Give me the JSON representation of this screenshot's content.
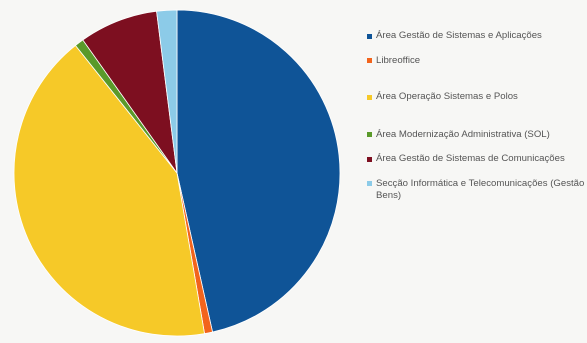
{
  "chart_data": {
    "type": "pie",
    "title": "",
    "legend_position": "right",
    "slices": [
      {
        "label": "Área Gestão de Sistemas e Aplicações",
        "value": 46.5,
        "color": "#0f5497"
      },
      {
        "label": "Libreoffice",
        "value": 0.8,
        "color": "#f2641c"
      },
      {
        "label": "Área Operação Sistemas e Polos",
        "value": 42.0,
        "color": "#f6c928"
      },
      {
        "label": "Área Modernização Administrativa (SOL)",
        "value": 0.9,
        "color": "#5a9a2a"
      },
      {
        "label": "Área Gestão de Sistemas de Comunicações",
        "value": 7.8,
        "color": "#7d0f20"
      },
      {
        "label": "Secção Informática e Telecomunicações (Gestão Bens)",
        "value": 2.0,
        "color": "#8ccbe8"
      }
    ]
  }
}
